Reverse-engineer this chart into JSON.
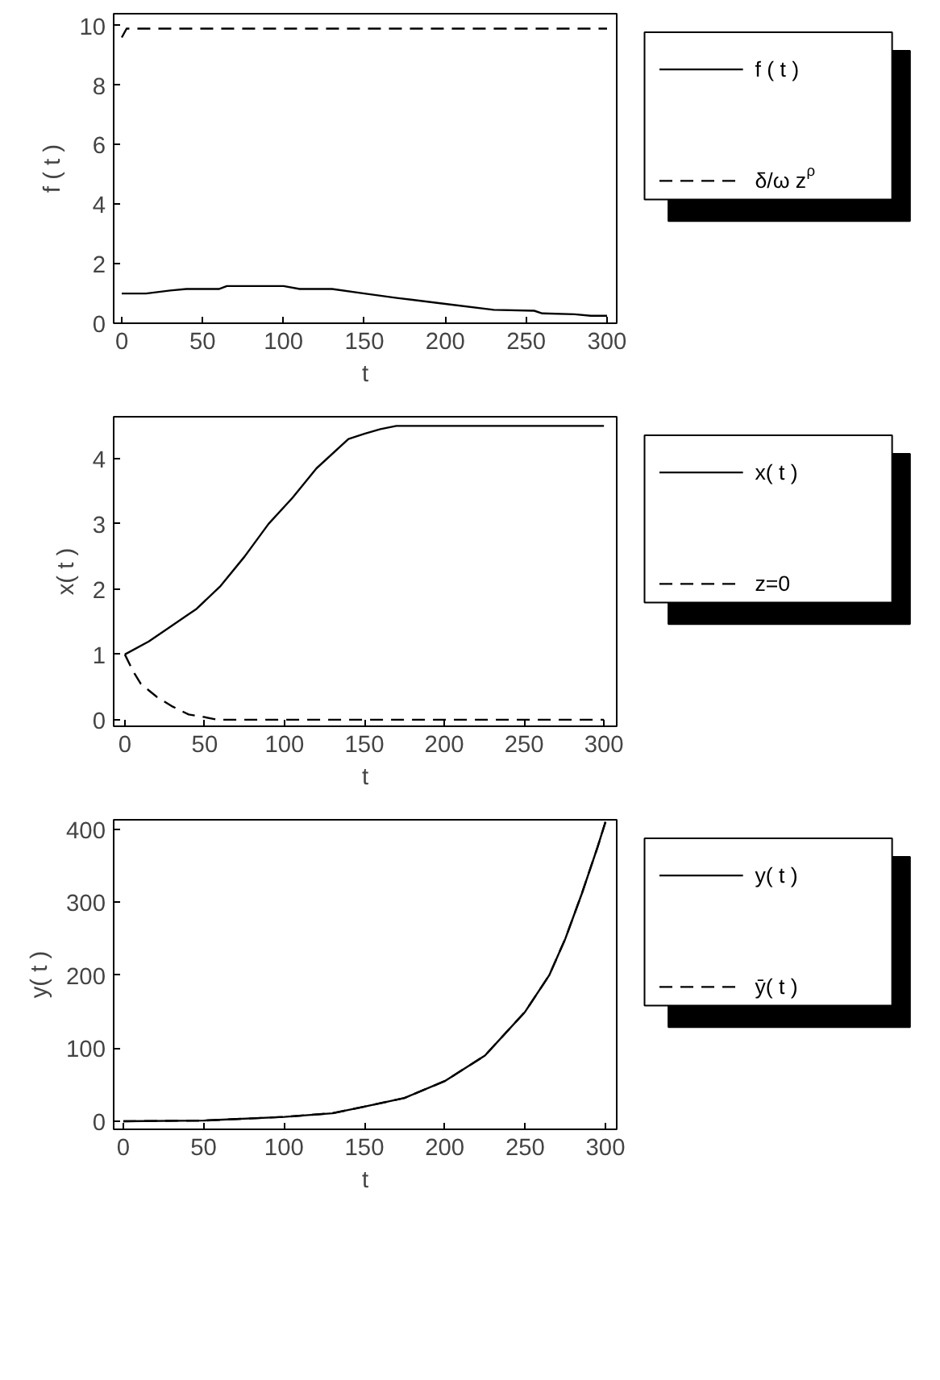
{
  "chart_data": [
    {
      "type": "line",
      "xlabel": "t",
      "ylabel": "f ( t )",
      "xlim": [
        -5,
        306
      ],
      "ylim": [
        0,
        10.4
      ],
      "xticks": [
        0,
        50,
        100,
        150,
        200,
        250,
        300
      ],
      "yticks": [
        0,
        2,
        4,
        6,
        8,
        10
      ],
      "grid": false,
      "legend": "right",
      "series": [
        {
          "name": "f ( t )",
          "color": "#000000",
          "line_style": "solid",
          "x": [
            0,
            15,
            30,
            40,
            60,
            65,
            100,
            110,
            130,
            150,
            170,
            200,
            230,
            255,
            260,
            280,
            290,
            300
          ],
          "values": [
            1.0,
            1.0,
            1.1,
            1.15,
            1.15,
            1.25,
            1.25,
            1.15,
            1.15,
            1.0,
            0.85,
            0.65,
            0.45,
            0.42,
            0.33,
            0.3,
            0.25,
            0.25
          ]
        },
        {
          "name": "δ/ω z$^{ρ}$",
          "color": "#000000",
          "line_style": "dashed",
          "x": [
            0,
            3,
            300
          ],
          "values": [
            9.6,
            9.9,
            9.9
          ]
        }
      ]
    },
    {
      "type": "line",
      "xlabel": "t",
      "ylabel": "x( t )",
      "xlim": [
        -7,
        308
      ],
      "ylim": [
        -0.1,
        4.64
      ],
      "xticks": [
        0,
        50,
        100,
        150,
        200,
        250,
        300
      ],
      "yticks": [
        0,
        1,
        2,
        3,
        4
      ],
      "grid": false,
      "legend": "right",
      "series": [
        {
          "name": "x( t )",
          "color": "#000000",
          "line_style": "solid",
          "x": [
            0,
            15,
            30,
            45,
            60,
            75,
            90,
            105,
            120,
            140,
            150,
            160,
            170,
            300
          ],
          "values": [
            1.0,
            1.2,
            1.45,
            1.7,
            2.05,
            2.5,
            3.0,
            3.4,
            3.85,
            4.3,
            4.38,
            4.45,
            4.5,
            4.5
          ]
        },
        {
          "name": "z=0",
          "color": "#000000",
          "line_style": "dashed",
          "x": [
            0,
            5,
            10,
            20,
            30,
            40,
            50,
            58,
            300
          ],
          "values": [
            1.0,
            0.75,
            0.55,
            0.35,
            0.2,
            0.08,
            0.04,
            0.0,
            0.0
          ]
        }
      ]
    },
    {
      "type": "line",
      "xlabel": "t",
      "ylabel": "y( t )",
      "xlim": [
        -6,
        307
      ],
      "ylim": [
        -11,
        413
      ],
      "xticks": [
        0,
        50,
        100,
        150,
        200,
        250,
        300
      ],
      "yticks": [
        0,
        100,
        200,
        300,
        400
      ],
      "grid": false,
      "legend": "right",
      "series": [
        {
          "name": "y( t )",
          "color": "#000000",
          "line_style": "solid",
          "x": [
            0,
            50,
            100,
            130,
            150,
            175,
            200,
            225,
            250,
            265,
            275,
            285,
            295,
            300
          ],
          "values": [
            0,
            1,
            6,
            11,
            20,
            32,
            55,
            90,
            150,
            200,
            250,
            310,
            375,
            410
          ]
        },
        {
          "name": "ȳ( t )",
          "color": "#000000",
          "line_style": "dashed",
          "x": [
            0,
            50,
            100,
            130,
            150,
            175,
            200,
            225,
            250,
            265,
            275,
            285,
            295,
            300
          ],
          "values": [
            0,
            1,
            6,
            11,
            20,
            32,
            55,
            90,
            150,
            200,
            250,
            310,
            375,
            410
          ]
        }
      ]
    }
  ]
}
